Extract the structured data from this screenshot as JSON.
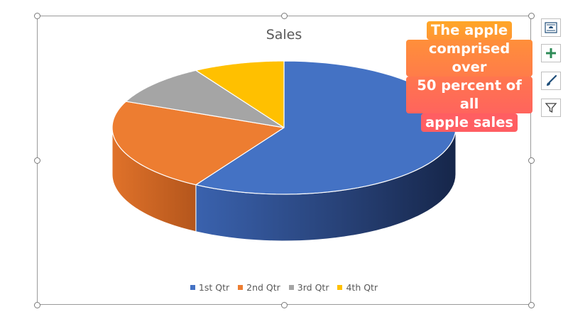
{
  "chart_data": {
    "type": "pie",
    "title": "Sales",
    "categories": [
      "1st Qtr",
      "2nd Qtr",
      "3rd Qtr",
      "4th Qtr"
    ],
    "values": [
      8.2,
      3.2,
      1.4,
      1.2
    ],
    "colors": [
      "#4472C4",
      "#ED7D31",
      "#A5A5A5",
      "#FFC000"
    ],
    "legend_position": "bottom",
    "three_d": true
  },
  "annotation": {
    "lines": [
      "The apple",
      "comprised over",
      "50 percent of all",
      "apple sales"
    ],
    "gradient_top": "#FFA726",
    "gradient_bottom": "#FF5E62"
  },
  "toolbar": {
    "buttons": [
      {
        "name": "layout-options-button",
        "icon": "layout-options-icon"
      },
      {
        "name": "chart-elements-button",
        "icon": "plus-icon"
      },
      {
        "name": "chart-styles-button",
        "icon": "brush-icon"
      },
      {
        "name": "chart-filters-button",
        "icon": "filter-icon"
      }
    ]
  }
}
